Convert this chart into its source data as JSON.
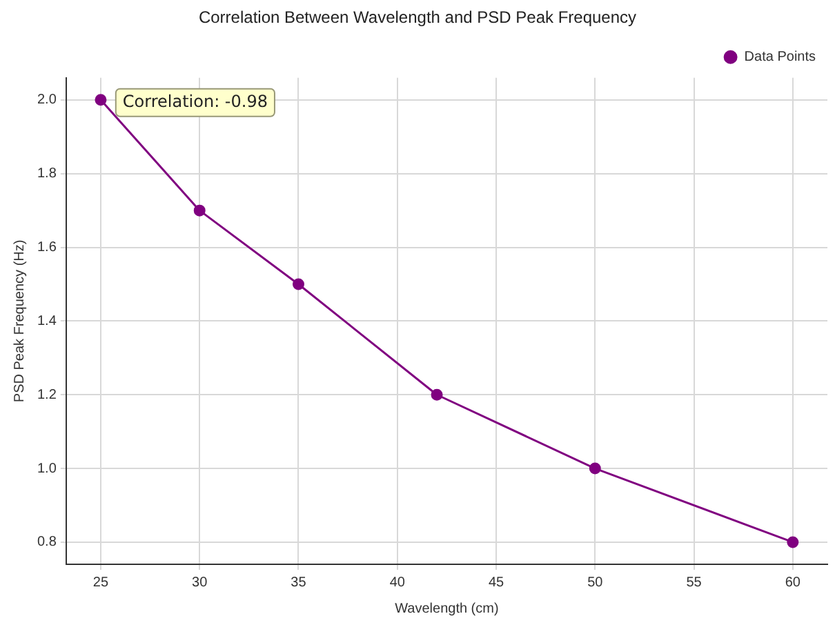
{
  "chart_data": {
    "type": "line",
    "title": "Correlation Between Wavelength and PSD Peak Frequency",
    "xlabel": "Wavelength (cm)",
    "ylabel": "PSD Peak Frequency (Hz)",
    "x": [
      25,
      30,
      35,
      42,
      50,
      60
    ],
    "series": [
      {
        "name": "Data Points",
        "color": "#800080",
        "values": [
          2.0,
          1.7,
          1.5,
          1.2,
          1.0,
          0.8
        ]
      }
    ],
    "xlim": [
      23.25,
      61.75
    ],
    "xticks": [
      25,
      30,
      35,
      40,
      45,
      50,
      55,
      60
    ],
    "ylim": [
      0.74,
      2.06
    ],
    "yticks": [
      {
        "value": 0.8,
        "label": "0.8"
      },
      {
        "value": 1.0,
        "label": "1.0"
      },
      {
        "value": 1.2,
        "label": "1.2"
      },
      {
        "value": 1.4,
        "label": "1.4"
      },
      {
        "value": 1.6,
        "label": "1.6"
      },
      {
        "value": 1.8,
        "label": "1.8"
      },
      {
        "value": 2.0,
        "label": "2.0"
      }
    ],
    "annotations": [
      "Correlation: -0.98"
    ],
    "grid": true,
    "legend": "top right",
    "marker": "circle",
    "line_style": "solid"
  }
}
